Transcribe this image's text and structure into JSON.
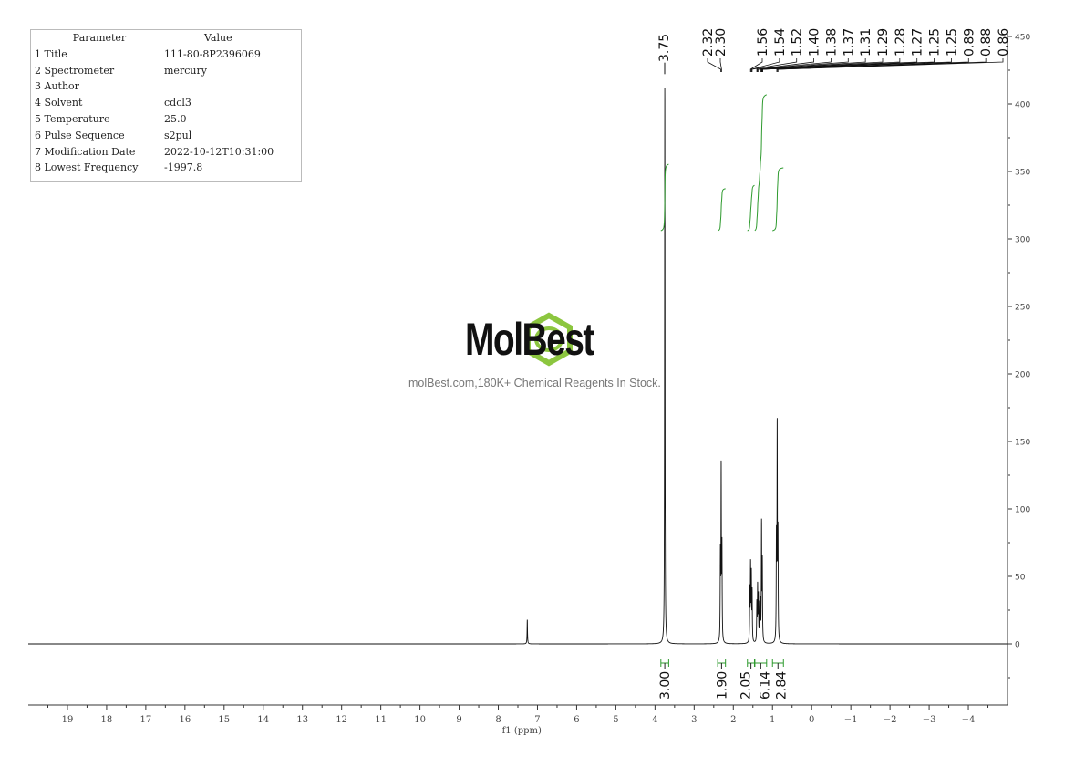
{
  "parameters": {
    "header": [
      "Parameter",
      "Value"
    ],
    "rows": [
      [
        "1 Title",
        "111-80-8P2396069"
      ],
      [
        "2 Spectrometer",
        "mercury"
      ],
      [
        "3 Author",
        ""
      ],
      [
        "4 Solvent",
        "cdcl3"
      ],
      [
        "5 Temperature",
        "25.0"
      ],
      [
        "6 Pulse Sequence",
        "s2pul"
      ],
      [
        "7 Modification Date",
        "2022-10-12T10:31:00"
      ],
      [
        "8 Lowest Frequency",
        "-1997.8"
      ]
    ]
  },
  "watermark": {
    "brand": "MolBest",
    "tagline": "molBest.com,180K+ Chemical Reagents In Stock."
  },
  "colors": {
    "spectrum": "#111111",
    "integral": "#2e9a2e",
    "axis": "#333333"
  },
  "chart_data": {
    "type": "line",
    "xlabel": "f1 (ppm)",
    "xlim": [
      20,
      -5
    ],
    "ylim": [
      -43,
      452
    ],
    "x_ticks": [
      19,
      18,
      17,
      16,
      15,
      14,
      13,
      12,
      11,
      10,
      9,
      8,
      7,
      6,
      5,
      4,
      3,
      2,
      1,
      0,
      -1,
      -2,
      -3,
      -4
    ],
    "x_tick_labels": [
      "19",
      "18",
      "17",
      "16",
      "15",
      "14",
      "13",
      "12",
      "11",
      "10",
      "9",
      "8",
      "7",
      "6",
      "5",
      "4",
      "3",
      "2",
      "1",
      "0",
      "−1",
      "−2",
      "−3",
      "−4"
    ],
    "y_ticks": [
      0,
      50,
      100,
      150,
      200,
      250,
      300,
      350,
      400,
      450
    ],
    "y_tick_labels": [
      "0",
      "50",
      "100",
      "150",
      "200",
      "250",
      "300",
      "350",
      "400",
      "450"
    ],
    "peaks": [
      [
        7.26,
        18
      ],
      [
        3.75,
        415
      ],
      [
        2.33,
        62
      ],
      [
        2.31,
        126
      ],
      [
        2.29,
        68
      ],
      [
        1.58,
        38
      ],
      [
        1.56,
        55
      ],
      [
        1.54,
        48
      ],
      [
        1.52,
        36
      ],
      [
        1.4,
        28
      ],
      [
        1.38,
        40
      ],
      [
        1.36,
        33
      ],
      [
        1.33,
        26
      ],
      [
        1.31,
        28
      ],
      [
        1.28,
        86
      ],
      [
        1.26,
        58
      ],
      [
        0.9,
        74
      ],
      [
        0.88,
        156
      ],
      [
        0.86,
        76
      ]
    ],
    "peak_labels": [
      "3.75",
      "2.32",
      "2.30",
      "1.56",
      "1.54",
      "1.52",
      "1.40",
      "1.38",
      "1.37",
      "1.31",
      "1.29",
      "1.28",
      "1.27",
      "1.25",
      "1.25",
      "0.89",
      "0.88",
      "0.86"
    ],
    "integrals": [
      {
        "from": 3.85,
        "to": 3.65,
        "value": "3.00"
      },
      {
        "from": 2.4,
        "to": 2.2,
        "value": "1.90"
      },
      {
        "from": 1.64,
        "to": 1.46,
        "value": "2.05"
      },
      {
        "from": 1.45,
        "to": 1.15,
        "value": "6.14"
      },
      {
        "from": 1.0,
        "to": 0.72,
        "value": "2.84"
      }
    ]
  }
}
